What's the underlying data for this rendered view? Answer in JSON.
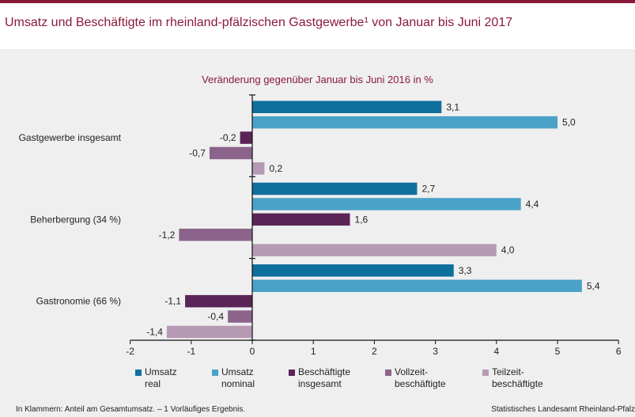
{
  "header": {
    "title": "Umsatz und Beschäftigte im rheinland-pfälzischen Gastgewerbe¹ von Januar bis Juni 2017"
  },
  "chart_data": {
    "type": "bar",
    "orientation": "horizontal",
    "subtitle": "Veränderung gegenüber Januar bis Juni 2016 in %",
    "categories": [
      "Gastgewerbe insgesamt",
      "Beherbergung (34 %)",
      "Gastronomie (66 %)"
    ],
    "series": [
      {
        "name": "Umsatz\nreal",
        "color": "#0f6f9d",
        "values": [
          3.1,
          2.7,
          3.3
        ],
        "labels": [
          "3,1",
          "2,7",
          "3,3"
        ]
      },
      {
        "name": "Umsatz\nnominal",
        "color": "#4aa2c8",
        "values": [
          5.0,
          4.4,
          5.4
        ],
        "labels": [
          "5,0",
          "4,4",
          "5,4"
        ]
      },
      {
        "name": "Beschäftigte\ninsgesamt",
        "color": "#5a2457",
        "values": [
          -0.2,
          1.6,
          -1.1
        ],
        "labels": [
          "-0,2",
          "1,6",
          "-1,1"
        ]
      },
      {
        "name": "Vollzeit-\nbeschäftigte",
        "color": "#8c648b",
        "values": [
          -0.7,
          -1.2,
          -0.4
        ],
        "labels": [
          "-0,7",
          "-1,2",
          "-0,4"
        ]
      },
      {
        "name": "Teilzeit-\nbeschäftigte",
        "color": "#b69ab4",
        "values": [
          0.2,
          4.0,
          -1.4
        ],
        "labels": [
          "0,2",
          "4,0",
          "-1,4"
        ]
      }
    ],
    "xlim": [
      -2,
      6
    ],
    "xticks": [
      -2,
      -1,
      0,
      1,
      2,
      3,
      4,
      5,
      6
    ],
    "xtick_labels": [
      "-2",
      "-1",
      "0",
      "1",
      "2",
      "3",
      "4",
      "5",
      "6"
    ],
    "grid": false,
    "legend_position": "bottom"
  },
  "footer": {
    "footnote": "In Klammern: Anteil am Gesamtumsatz. – 1 Vorläufiges Ergebnis.",
    "source": "Statistisches Landesamt Rheinland-Pfalz"
  }
}
